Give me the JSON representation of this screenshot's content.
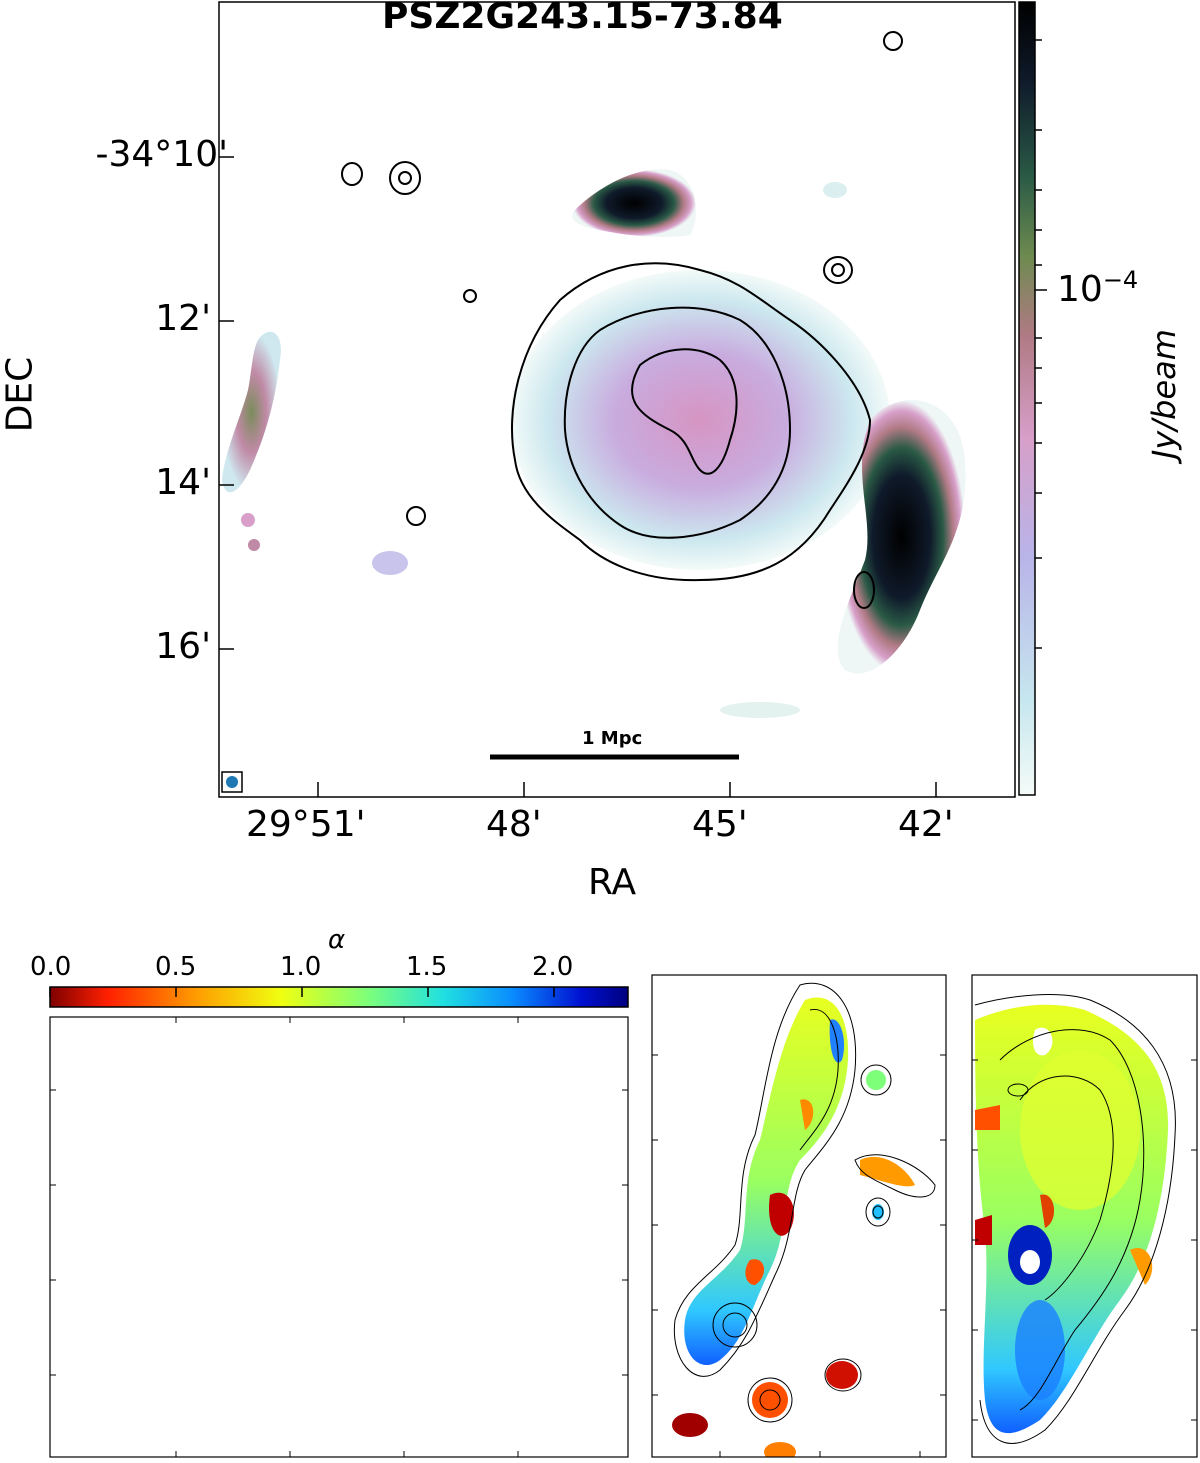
{
  "chart_data": [
    {
      "type": "heatmap",
      "panel": "radio-image",
      "title": "PSZ2G243.15-73.84",
      "xlabel": "RA",
      "ylabel": "DEC",
      "x_ticks": [
        "29°51'",
        "48'",
        "45'",
        "42'"
      ],
      "y_ticks": [
        "-34°10'",
        "12'",
        "14'",
        "16'"
      ],
      "colorbar": {
        "label": "Jy/beam",
        "tick_label": "10^-4",
        "scale": "log"
      },
      "scalebar_label": "1 Mpc",
      "contours": true
    },
    {
      "type": "heatmap",
      "panel": "spectral-index-maps",
      "colorbar_label": "α",
      "colorbar_ticks": [
        "0.0",
        "0.5",
        "1.0",
        "1.5",
        "2.0"
      ],
      "colorbar_range": [
        0.0,
        2.3
      ],
      "colormap": "jet_r",
      "subpanels": 3
    }
  ],
  "labels": {
    "title": "PSZ2G243.15-73.84",
    "xlabel": "RA",
    "ylabel": "DEC",
    "xticks": [
      "29°51'",
      "48'",
      "45'",
      "42'"
    ],
    "yticks": [
      "-34°10'",
      "12'",
      "14'",
      "16'"
    ],
    "cbar_label": "Jy/beam",
    "cbar_tick_base": "10",
    "cbar_tick_exp": "−4",
    "scalebar": "1 Mpc",
    "alpha_label": "α",
    "alpha_ticks": [
      "0.0",
      "0.5",
      "1.0",
      "1.5",
      "2.0"
    ]
  },
  "colors": {
    "cmap_radio": [
      "#f4fbf8",
      "#c6e6ee",
      "#b8b4e8",
      "#d79fc9",
      "#b07a84",
      "#6d8a4f",
      "#2a5a46",
      "#0f1a2a",
      "#000000"
    ],
    "cmap_alpha": [
      "#7f0000",
      "#ff2000",
      "#ff9a00",
      "#f0ff10",
      "#7dff7a",
      "#20e0e0",
      "#0a8cff",
      "#0010d0",
      "#00007f"
    ]
  }
}
